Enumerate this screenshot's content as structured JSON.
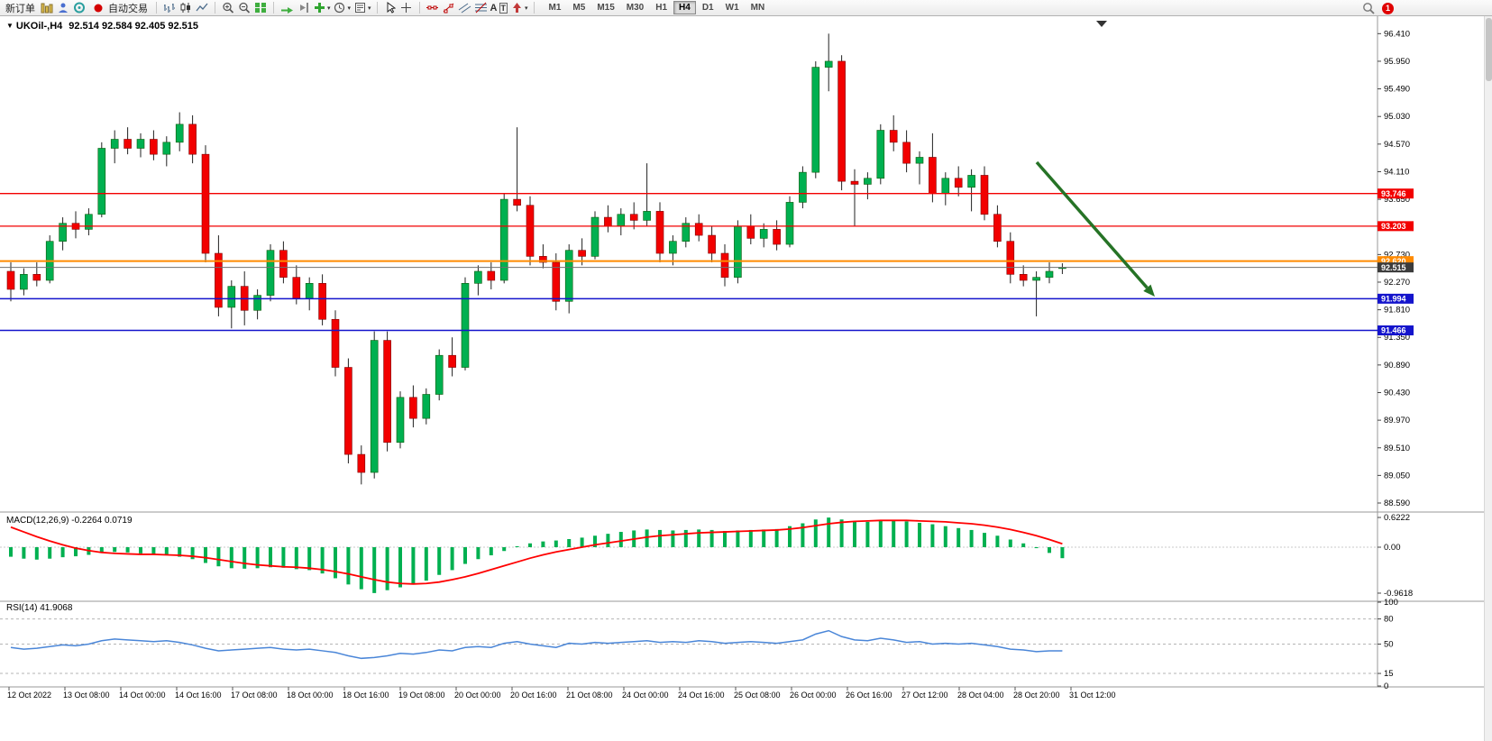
{
  "window": {
    "notification_badge": "1"
  },
  "toolbar": {
    "new_order_label": "新订单",
    "auto_trading_label": "自动交易",
    "timeframes": [
      "M1",
      "M5",
      "M15",
      "M30",
      "H1",
      "H4",
      "D1",
      "W1",
      "MN"
    ],
    "active_timeframe": "H4"
  },
  "chart": {
    "dropdown_marker": "▼",
    "title_symbol": "UKOil-,H4",
    "title_ohlc": "92.514 92.584 92.405 92.515"
  },
  "chart_data": {
    "type": "candlestick",
    "symbol": "UKOil-",
    "period": "H4",
    "quote": {
      "open": 92.514,
      "high": 92.584,
      "low": 92.405,
      "close": 92.515
    },
    "colors": {
      "bull": "#00b050",
      "bear": "#f20000",
      "bull_edge": "#0a5a0a",
      "bear_edge": "#7c0000",
      "wick": "#222222",
      "macd_hist": "#00b050",
      "macd_signal": "#ff0000",
      "rsi_line": "#4a86d8",
      "arrow": "#267326",
      "bid_line": "#707070",
      "bid_tag": "#3c3c3c"
    },
    "price_axis_ticks": [
      "96.410",
      "95.950",
      "95.490",
      "95.030",
      "94.570",
      "94.110",
      "93.650",
      "93.190",
      "92.730",
      "92.270",
      "91.810",
      "91.350",
      "90.890",
      "90.430",
      "89.970",
      "89.510",
      "89.050",
      "88.590"
    ],
    "hlines": [
      {
        "price": 93.746,
        "label": "93.746",
        "color": "#f20000",
        "width": 1.3
      },
      {
        "price": 93.203,
        "label": "93.203",
        "color": "#f20000",
        "width": 1.3
      },
      {
        "price": 92.62,
        "label": "92.620",
        "color": "#ff8a00",
        "width": 2
      },
      {
        "price": 91.994,
        "label": "91.994",
        "color": "#1414cc",
        "width": 1.5
      },
      {
        "price": 91.466,
        "label": "91.466",
        "color": "#1414cc",
        "width": 1.5
      }
    ],
    "bid": {
      "price": 92.515,
      "label": "92.515"
    },
    "candles": [
      [
        92.45,
        92.6,
        91.95,
        92.15
      ],
      [
        92.15,
        92.5,
        92.05,
        92.4
      ],
      [
        92.4,
        92.6,
        92.2,
        92.3
      ],
      [
        92.3,
        93.05,
        92.25,
        92.95
      ],
      [
        92.95,
        93.35,
        92.8,
        93.25
      ],
      [
        93.25,
        93.45,
        93.0,
        93.15
      ],
      [
        93.15,
        93.5,
        93.05,
        93.4
      ],
      [
        93.4,
        94.6,
        93.35,
        94.5
      ],
      [
        94.5,
        94.8,
        94.25,
        94.65
      ],
      [
        94.65,
        94.85,
        94.4,
        94.5
      ],
      [
        94.5,
        94.75,
        94.35,
        94.65
      ],
      [
        94.65,
        94.8,
        94.3,
        94.4
      ],
      [
        94.4,
        94.7,
        94.2,
        94.6
      ],
      [
        94.6,
        95.1,
        94.45,
        94.9
      ],
      [
        94.9,
        95.05,
        94.25,
        94.4
      ],
      [
        94.4,
        94.55,
        92.6,
        92.75
      ],
      [
        92.75,
        93.05,
        91.7,
        91.85
      ],
      [
        91.85,
        92.3,
        91.5,
        92.2
      ],
      [
        92.2,
        92.45,
        91.55,
        91.8
      ],
      [
        91.8,
        92.15,
        91.65,
        92.05
      ],
      [
        92.05,
        92.9,
        91.95,
        92.8
      ],
      [
        92.8,
        92.95,
        92.25,
        92.35
      ],
      [
        92.35,
        92.55,
        91.9,
        92.0
      ],
      [
        92.0,
        92.35,
        91.8,
        92.25
      ],
      [
        92.25,
        92.4,
        91.55,
        91.65
      ],
      [
        91.65,
        91.8,
        90.7,
        90.85
      ],
      [
        90.85,
        91.0,
        89.25,
        89.4
      ],
      [
        89.4,
        89.55,
        88.9,
        89.1
      ],
      [
        89.1,
        91.45,
        89.0,
        91.3
      ],
      [
        91.3,
        91.45,
        89.45,
        89.6
      ],
      [
        89.6,
        90.45,
        89.5,
        90.35
      ],
      [
        90.35,
        90.55,
        89.85,
        90.0
      ],
      [
        90.0,
        90.5,
        89.9,
        90.4
      ],
      [
        90.4,
        91.15,
        90.3,
        91.05
      ],
      [
        91.05,
        91.35,
        90.7,
        90.85
      ],
      [
        90.85,
        92.35,
        90.8,
        92.25
      ],
      [
        92.25,
        92.55,
        92.05,
        92.45
      ],
      [
        92.45,
        92.6,
        92.15,
        92.3
      ],
      [
        92.3,
        93.75,
        92.25,
        93.65
      ],
      [
        93.65,
        94.85,
        93.45,
        93.55
      ],
      [
        93.55,
        93.7,
        92.55,
        92.7
      ],
      [
        92.7,
        92.9,
        92.5,
        92.6
      ],
      [
        92.6,
        92.75,
        91.8,
        91.95
      ],
      [
        91.95,
        92.9,
        91.75,
        92.8
      ],
      [
        92.8,
        93.0,
        92.55,
        92.7
      ],
      [
        92.7,
        93.45,
        92.65,
        93.35
      ],
      [
        93.35,
        93.55,
        93.1,
        93.2
      ],
      [
        93.2,
        93.5,
        93.05,
        93.4
      ],
      [
        93.4,
        93.6,
        93.15,
        93.3
      ],
      [
        93.3,
        94.25,
        93.2,
        93.45
      ],
      [
        93.45,
        93.6,
        92.6,
        92.75
      ],
      [
        92.75,
        93.05,
        92.55,
        92.95
      ],
      [
        92.95,
        93.35,
        92.85,
        93.25
      ],
      [
        93.25,
        93.4,
        92.95,
        93.05
      ],
      [
        93.05,
        93.2,
        92.6,
        92.75
      ],
      [
        92.75,
        92.9,
        92.2,
        92.35
      ],
      [
        92.35,
        93.3,
        92.25,
        93.2
      ],
      [
        93.2,
        93.4,
        92.9,
        93.0
      ],
      [
        93.0,
        93.25,
        92.85,
        93.15
      ],
      [
        93.15,
        93.3,
        92.8,
        92.9
      ],
      [
        92.9,
        93.7,
        92.85,
        93.6
      ],
      [
        93.6,
        94.2,
        93.5,
        94.1
      ],
      [
        94.1,
        95.95,
        94.0,
        95.85
      ],
      [
        95.85,
        96.41,
        95.45,
        95.95
      ],
      [
        95.95,
        96.05,
        93.8,
        93.95
      ],
      [
        93.95,
        94.15,
        93.2,
        93.9
      ],
      [
        93.9,
        94.1,
        93.65,
        94.0
      ],
      [
        94.0,
        94.9,
        93.9,
        94.8
      ],
      [
        94.8,
        95.05,
        94.45,
        94.6
      ],
      [
        94.6,
        94.8,
        94.1,
        94.25
      ],
      [
        94.25,
        94.45,
        93.9,
        94.35
      ],
      [
        94.35,
        94.75,
        93.6,
        93.75
      ],
      [
        93.75,
        94.1,
        93.55,
        94.0
      ],
      [
        94.0,
        94.2,
        93.7,
        93.85
      ],
      [
        93.85,
        94.15,
        93.45,
        94.05
      ],
      [
        94.05,
        94.2,
        93.3,
        93.4
      ],
      [
        93.4,
        93.55,
        92.85,
        92.95
      ],
      [
        92.95,
        93.1,
        92.25,
        92.4
      ],
      [
        92.4,
        92.55,
        92.2,
        92.3
      ],
      [
        92.3,
        92.45,
        91.7,
        92.35
      ],
      [
        92.35,
        92.6,
        92.25,
        92.45
      ],
      [
        92.514,
        92.584,
        92.405,
        92.515
      ]
    ],
    "time_labels": [
      "12 Oct 2022",
      "13 Oct 08:00",
      "14 Oct 00:00",
      "14 Oct 16:00",
      "17 Oct 08:00",
      "18 Oct 00:00",
      "18 Oct 16:00",
      "19 Oct 08:00",
      "20 Oct 00:00",
      "20 Oct 16:00",
      "21 Oct 08:00",
      "24 Oct 00:00",
      "24 Oct 16:00",
      "25 Oct 08:00",
      "26 Oct 00:00",
      "26 Oct 16:00",
      "27 Oct 12:00",
      "28 Oct 04:00",
      "28 Oct 20:00",
      "31 Oct 12:00"
    ],
    "macd": {
      "name": "MACD(12,26,9)",
      "values_text": "-0.2264 0.0719",
      "axis_ticks": [
        "0.6222",
        "0.00",
        "-0.9618"
      ],
      "hist": [
        -0.2,
        -0.24,
        -0.26,
        -0.24,
        -0.21,
        -0.19,
        -0.16,
        -0.12,
        -0.1,
        -0.11,
        -0.13,
        -0.15,
        -0.17,
        -0.2,
        -0.25,
        -0.33,
        -0.4,
        -0.44,
        -0.45,
        -0.44,
        -0.42,
        -0.43,
        -0.46,
        -0.48,
        -0.55,
        -0.65,
        -0.78,
        -0.88,
        -0.96,
        -0.9,
        -0.84,
        -0.78,
        -0.7,
        -0.58,
        -0.48,
        -0.35,
        -0.25,
        -0.17,
        -0.08,
        0.02,
        0.08,
        0.12,
        0.14,
        0.17,
        0.2,
        0.24,
        0.28,
        0.32,
        0.35,
        0.37,
        0.36,
        0.35,
        0.36,
        0.37,
        0.36,
        0.34,
        0.35,
        0.36,
        0.37,
        0.38,
        0.44,
        0.5,
        0.58,
        0.62,
        0.58,
        0.54,
        0.53,
        0.55,
        0.56,
        0.54,
        0.51,
        0.48,
        0.44,
        0.4,
        0.36,
        0.3,
        0.24,
        0.16,
        0.08,
        -0.02,
        -0.12,
        -0.23
      ],
      "signal": [
        0.42,
        0.32,
        0.22,
        0.13,
        0.05,
        -0.02,
        -0.07,
        -0.11,
        -0.13,
        -0.14,
        -0.15,
        -0.15,
        -0.16,
        -0.17,
        -0.19,
        -0.22,
        -0.26,
        -0.3,
        -0.34,
        -0.37,
        -0.39,
        -0.41,
        -0.42,
        -0.44,
        -0.47,
        -0.51,
        -0.56,
        -0.62,
        -0.68,
        -0.73,
        -0.76,
        -0.77,
        -0.76,
        -0.73,
        -0.68,
        -0.62,
        -0.55,
        -0.47,
        -0.39,
        -0.31,
        -0.23,
        -0.16,
        -0.1,
        -0.05,
        0.0,
        0.05,
        0.09,
        0.13,
        0.17,
        0.21,
        0.24,
        0.26,
        0.28,
        0.3,
        0.31,
        0.32,
        0.33,
        0.34,
        0.35,
        0.36,
        0.38,
        0.41,
        0.45,
        0.49,
        0.52,
        0.54,
        0.55,
        0.56,
        0.56,
        0.56,
        0.55,
        0.54,
        0.53,
        0.51,
        0.49,
        0.46,
        0.42,
        0.37,
        0.31,
        0.24,
        0.16,
        0.07
      ]
    },
    "rsi": {
      "name": "RSI(14)",
      "value_text": "41.9068",
      "axis_ticks": [
        "100",
        "80",
        "50",
        "15",
        "0"
      ],
      "levels": [
        80,
        50,
        15
      ],
      "values": [
        46,
        44,
        45,
        47,
        49,
        48,
        50,
        54,
        56,
        55,
        54,
        53,
        54,
        52,
        49,
        45,
        42,
        43,
        44,
        45,
        46,
        44,
        43,
        44,
        42,
        40,
        36,
        33,
        34,
        36,
        39,
        38,
        40,
        43,
        42,
        46,
        47,
        46,
        51,
        53,
        50,
        48,
        46,
        51,
        50,
        52,
        51,
        52,
        53,
        54,
        52,
        53,
        52,
        54,
        53,
        51,
        52,
        53,
        52,
        51,
        53,
        55,
        62,
        66,
        59,
        55,
        54,
        57,
        55,
        52,
        53,
        50,
        51,
        50,
        51,
        49,
        47,
        44,
        43,
        41,
        42,
        41.9
      ]
    }
  }
}
